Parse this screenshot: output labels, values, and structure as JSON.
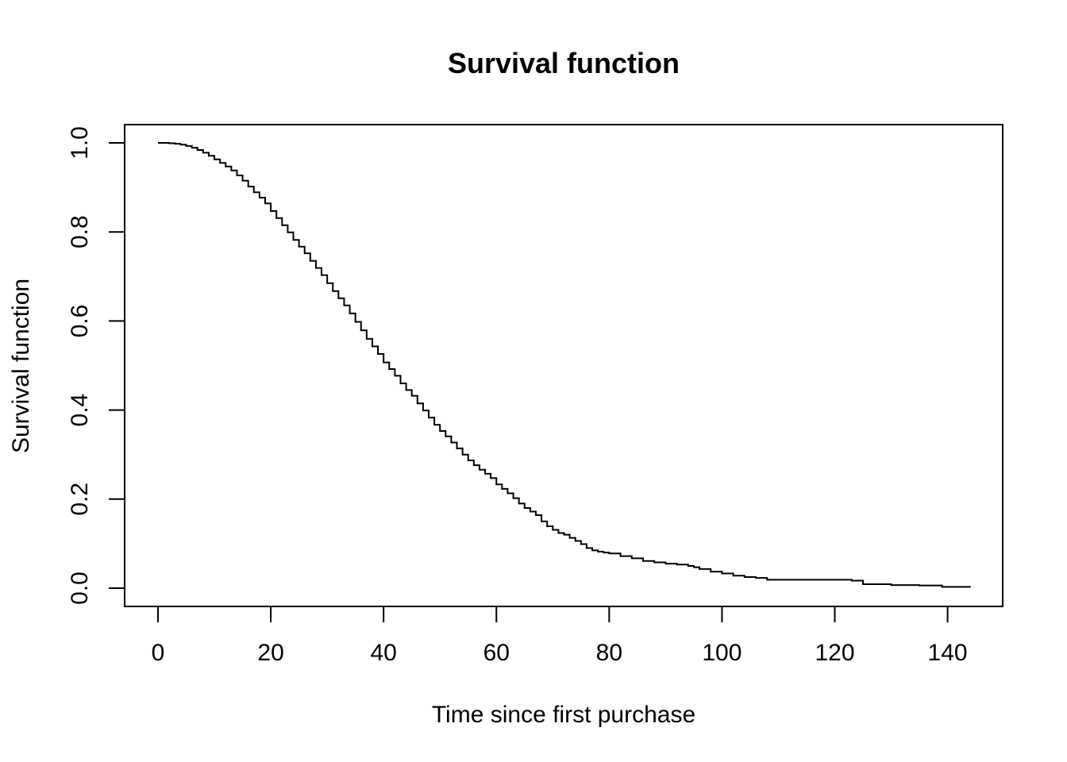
{
  "chart_data": {
    "type": "line",
    "step": true,
    "title": "Survival function",
    "xlabel": "Time since first purchase",
    "ylabel": "Survival function",
    "xlim": [
      0,
      144
    ],
    "ylim": [
      0,
      1.0
    ],
    "x_ticks": [
      0,
      20,
      40,
      60,
      80,
      100,
      120,
      140
    ],
    "x_tick_labels": [
      "0",
      "20",
      "40",
      "60",
      "80",
      "100",
      "120",
      "140"
    ],
    "y_ticks": [
      0.0,
      0.2,
      0.4,
      0.6,
      0.8,
      1.0
    ],
    "y_tick_labels": [
      "0.0",
      "0.2",
      "0.4",
      "0.6",
      "0.8",
      "1.0"
    ],
    "grid": false,
    "legend": "none",
    "series": [
      {
        "x": [
          0,
          2,
          3,
          4,
          5,
          6,
          7,
          8,
          9,
          10,
          11,
          12,
          13,
          14,
          15,
          16,
          17,
          18,
          19,
          20,
          21,
          22,
          23,
          24,
          25,
          26,
          27,
          28,
          29,
          30,
          31,
          32,
          33,
          34,
          35,
          36,
          37,
          38,
          39,
          40,
          41,
          42,
          43,
          44,
          45,
          46,
          47,
          48,
          49,
          50,
          51,
          52,
          53,
          54,
          55,
          56,
          57,
          58,
          59,
          60,
          61,
          62,
          63,
          64,
          65,
          66,
          67,
          68,
          69,
          70,
          71,
          72,
          73,
          74,
          75,
          76,
          77,
          78,
          79,
          80,
          82,
          84,
          86,
          88,
          90,
          92,
          94,
          95,
          96,
          98,
          100,
          102,
          104,
          106,
          108,
          110,
          113,
          116,
          120,
          123,
          125,
          130,
          135,
          139,
          144
        ],
        "y": [
          1.0,
          0.999,
          0.998,
          0.996,
          0.993,
          0.989,
          0.984,
          0.978,
          0.971,
          0.963,
          0.955,
          0.947,
          0.938,
          0.927,
          0.915,
          0.902,
          0.889,
          0.877,
          0.864,
          0.847,
          0.831,
          0.815,
          0.799,
          0.782,
          0.767,
          0.752,
          0.735,
          0.719,
          0.703,
          0.685,
          0.667,
          0.651,
          0.635,
          0.617,
          0.598,
          0.579,
          0.56,
          0.543,
          0.526,
          0.507,
          0.492,
          0.477,
          0.46,
          0.445,
          0.432,
          0.415,
          0.399,
          0.383,
          0.367,
          0.353,
          0.341,
          0.327,
          0.314,
          0.3,
          0.287,
          0.276,
          0.266,
          0.257,
          0.247,
          0.233,
          0.223,
          0.213,
          0.202,
          0.19,
          0.18,
          0.172,
          0.164,
          0.15,
          0.139,
          0.131,
          0.124,
          0.12,
          0.113,
          0.106,
          0.099,
          0.09,
          0.085,
          0.082,
          0.08,
          0.078,
          0.072,
          0.067,
          0.061,
          0.058,
          0.055,
          0.053,
          0.05,
          0.047,
          0.043,
          0.037,
          0.033,
          0.028,
          0.025,
          0.023,
          0.019,
          0.019,
          0.019,
          0.019,
          0.019,
          0.017,
          0.009,
          0.007,
          0.006,
          0.003,
          0.002
        ]
      }
    ]
  }
}
